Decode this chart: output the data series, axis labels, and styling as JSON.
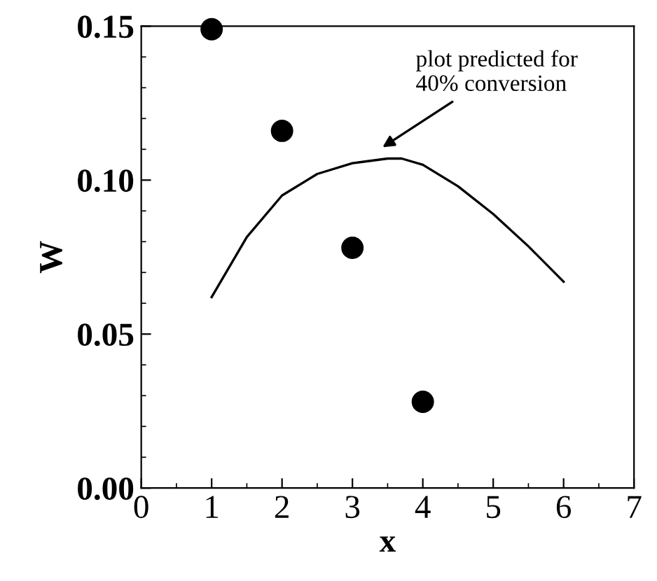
{
  "chart_data": {
    "type": "scatter",
    "xlabel": "x",
    "ylabel": "W",
    "xlim": [
      0,
      7
    ],
    "xticks": [
      0,
      1,
      2,
      3,
      4,
      5,
      6,
      7
    ],
    "ylim": [
      0,
      0.15
    ],
    "yticks": [
      {
        "value": 0,
        "label": "0.00"
      },
      {
        "value": 0.05,
        "label": "0.05"
      },
      {
        "value": 0.1,
        "label": "0.10"
      },
      {
        "value": 0.15,
        "label": "0.15"
      }
    ],
    "grid": false,
    "marker": "circle",
    "series": [
      {
        "color": "#000000",
        "x": [
          1,
          2,
          3,
          4
        ],
        "values": [
          0.149,
          0.116,
          0.078,
          0.028
        ]
      },
      {
        "type": "line",
        "color": "#000000",
        "marker": "none",
        "line_style": "solid",
        "x": [
          1,
          1.5,
          2,
          2.5,
          3,
          3.5,
          3.7,
          4,
          4.5,
          5,
          5.5,
          6
        ],
        "values": [
          0.062,
          0.0815,
          0.095,
          0.102,
          0.1055,
          0.107,
          0.107,
          0.105,
          0.098,
          0.089,
          0.0785,
          0.067
        ]
      }
    ],
    "annotations": [
      "plot predicted for\n40% conversion"
    ]
  }
}
